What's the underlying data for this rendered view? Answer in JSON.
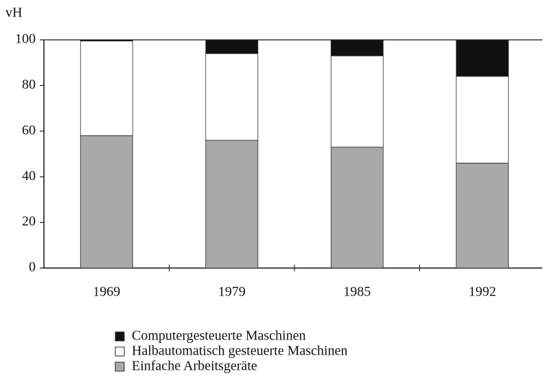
{
  "chart_data": {
    "type": "stacked_bar",
    "y_label": "vH",
    "categories": [
      "1969",
      "1979",
      "1985",
      "1992"
    ],
    "series": [
      {
        "name": "Einfache Arbeitsgeräte",
        "color": "#a9a9a9",
        "values": [
          58,
          56,
          53,
          46
        ]
      },
      {
        "name": "Halbautomatisch gesteuerte Maschinen",
        "color": "#ffffff",
        "values": [
          41.5,
          38,
          40,
          38
        ]
      },
      {
        "name": "Computergesteuerte Maschinen",
        "color": "#111111",
        "values": [
          0.5,
          6,
          7,
          16
        ]
      }
    ],
    "ylim": [
      0,
      100
    ],
    "yticks": [
      0,
      20,
      40,
      60,
      80,
      100
    ],
    "grid": false
  }
}
